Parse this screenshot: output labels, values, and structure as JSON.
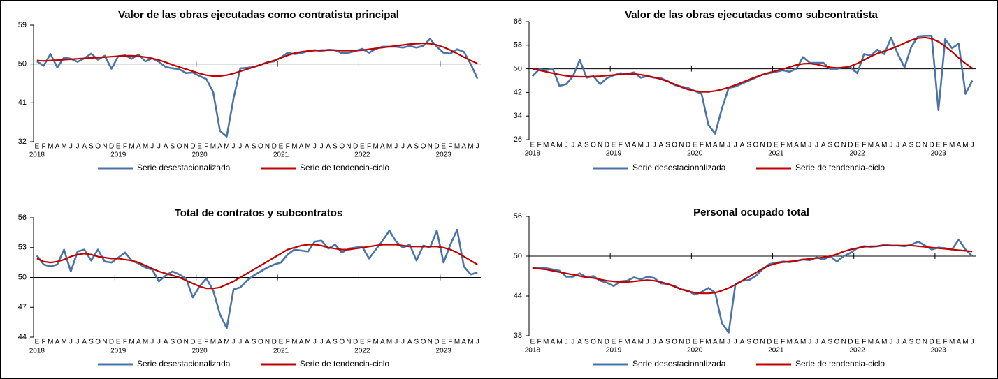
{
  "chart_data": [
    {
      "type": "line",
      "title": "Valor de las obras ejecutadas como contratista principal",
      "categories": [
        "E",
        "F",
        "M",
        "A",
        "M",
        "J",
        "J",
        "A",
        "S",
        "O",
        "N",
        "D",
        "E",
        "F",
        "M",
        "A",
        "M",
        "J",
        "J",
        "A",
        "S",
        "O",
        "N",
        "D",
        "E",
        "F",
        "M",
        "A",
        "M",
        "J",
        "J",
        "A",
        "S",
        "O",
        "N",
        "D",
        "E",
        "F",
        "M",
        "A",
        "M",
        "J",
        "J",
        "A",
        "S",
        "O",
        "N",
        "D",
        "E",
        "F",
        "M",
        "A",
        "M",
        "J",
        "J",
        "A",
        "S",
        "O",
        "N",
        "D",
        "E",
        "F",
        "M",
        "A",
        "M",
        "J"
      ],
      "years": [
        "2018",
        "2019",
        "2020",
        "2021",
        "2022",
        "2023"
      ],
      "ylim": [
        32,
        59
      ],
      "yticks": [
        32,
        41,
        50,
        59
      ],
      "xaxis_crosses": 50,
      "series": [
        {
          "name": "Serie desestacionalizada",
          "color": "#4a74a8",
          "values": [
            50.6,
            49.6,
            52.3,
            49.2,
            51.5,
            51.2,
            50.5,
            51.3,
            52.4,
            51.0,
            51.9,
            48.9,
            51.8,
            52.0,
            51.2,
            52.2,
            50.6,
            51.3,
            50.5,
            49.3,
            49.0,
            48.8,
            47.9,
            48.0,
            47.2,
            46.5,
            43.5,
            34.5,
            33.2,
            42.0,
            49.0,
            49.1,
            49.3,
            49.8,
            50.4,
            50.6,
            51.5,
            52.6,
            52.3,
            52.5,
            53.0,
            53.2,
            53.0,
            53.3,
            53.2,
            52.5,
            52.6,
            53.0,
            53.5,
            52.6,
            53.5,
            54.0,
            54.0,
            54.0,
            53.8,
            54.2,
            53.8,
            54.2,
            55.8,
            54.0,
            52.6,
            52.4,
            53.4,
            52.8,
            50.0,
            46.6
          ]
        },
        {
          "name": "Serie de tendencia-ciclo",
          "color": "#c00000",
          "values": [
            50.8,
            50.7,
            50.8,
            50.9,
            51.0,
            51.1,
            51.2,
            51.3,
            51.4,
            51.5,
            51.6,
            51.7,
            51.8,
            51.9,
            51.9,
            51.8,
            51.6,
            51.3,
            50.9,
            50.4,
            49.8,
            49.3,
            48.8,
            48.3,
            47.8,
            47.4,
            47.2,
            47.2,
            47.4,
            47.8,
            48.3,
            48.8,
            49.3,
            49.8,
            50.3,
            50.8,
            51.4,
            52.0,
            52.5,
            52.8,
            53.0,
            53.1,
            53.2,
            53.2,
            53.2,
            53.1,
            53.1,
            53.1,
            53.2,
            53.4,
            53.6,
            53.8,
            54.0,
            54.2,
            54.4,
            54.6,
            54.7,
            54.8,
            54.7,
            54.4,
            53.9,
            53.2,
            52.4,
            51.6,
            50.8,
            50.1
          ]
        }
      ]
    },
    {
      "type": "line",
      "title": "Valor de las obras ejecutadas como subcontratista",
      "categories": [
        "E",
        "F",
        "M",
        "A",
        "M",
        "J",
        "J",
        "A",
        "S",
        "O",
        "N",
        "D",
        "E",
        "F",
        "M",
        "A",
        "M",
        "J",
        "J",
        "A",
        "S",
        "O",
        "N",
        "D",
        "E",
        "F",
        "M",
        "A",
        "M",
        "J",
        "J",
        "A",
        "S",
        "O",
        "N",
        "D",
        "E",
        "F",
        "M",
        "A",
        "M",
        "J",
        "J",
        "A",
        "S",
        "O",
        "N",
        "D",
        "E",
        "F",
        "M",
        "A",
        "M",
        "J",
        "J",
        "A",
        "S",
        "O",
        "N",
        "D",
        "E",
        "F",
        "M",
        "A",
        "M",
        "J"
      ],
      "years": [
        "2018",
        "2019",
        "2020",
        "2021",
        "2022",
        "2023"
      ],
      "ylim": [
        26,
        66
      ],
      "yticks": [
        26,
        34,
        42,
        50,
        58,
        66
      ],
      "xaxis_crosses": 50,
      "series": [
        {
          "name": "Serie desestacionalizada",
          "color": "#4a74a8",
          "values": [
            47.5,
            49.8,
            49.5,
            50.0,
            44.2,
            44.8,
            47.5,
            53.0,
            47.0,
            47.5,
            44.8,
            46.8,
            47.8,
            48.5,
            48.2,
            48.8,
            47.0,
            47.5,
            47.0,
            46.8,
            45.8,
            44.5,
            44.0,
            43.5,
            42.5,
            41.5,
            31.0,
            28.0,
            36.5,
            43.5,
            44.0,
            45.0,
            46.0,
            47.0,
            48.0,
            48.5,
            49.0,
            49.5,
            49.0,
            50.0,
            54.0,
            52.0,
            52.0,
            52.0,
            50.0,
            50.0,
            50.5,
            50.5,
            48.5,
            55.0,
            54.5,
            56.5,
            55.0,
            60.5,
            55.0,
            50.5,
            57.5,
            61.0,
            61.2,
            61.2,
            36.0,
            60.0,
            57.0,
            58.5,
            41.5,
            46.0
          ]
        },
        {
          "name": "Serie de tendencia-ciclo",
          "color": "#c00000",
          "values": [
            50.0,
            49.5,
            49.0,
            48.5,
            48.0,
            47.6,
            47.4,
            47.3,
            47.3,
            47.4,
            47.5,
            47.7,
            47.9,
            48.1,
            48.2,
            48.2,
            48.0,
            47.6,
            47.1,
            46.5,
            45.7,
            44.8,
            43.8,
            43.0,
            42.5,
            42.2,
            42.2,
            42.5,
            43.0,
            43.7,
            44.5,
            45.4,
            46.3,
            47.2,
            48.0,
            48.7,
            49.3,
            49.9,
            50.6,
            51.3,
            51.7,
            51.8,
            51.5,
            51.0,
            50.5,
            50.3,
            50.4,
            50.9,
            51.8,
            53.0,
            54.2,
            55.2,
            56.0,
            56.8,
            57.7,
            58.7,
            59.7,
            60.4,
            60.6,
            60.2,
            59.2,
            57.6,
            55.8,
            53.7,
            51.8,
            50.2
          ]
        }
      ]
    },
    {
      "type": "line",
      "title": "Total de contratos y subcontratos",
      "categories": [
        "E",
        "F",
        "M",
        "A",
        "M",
        "J",
        "J",
        "A",
        "S",
        "O",
        "N",
        "D",
        "E",
        "F",
        "M",
        "A",
        "M",
        "J",
        "J",
        "A",
        "S",
        "O",
        "N",
        "D",
        "E",
        "F",
        "M",
        "A",
        "M",
        "J",
        "J",
        "A",
        "S",
        "O",
        "N",
        "D",
        "E",
        "F",
        "M",
        "A",
        "M",
        "J",
        "J",
        "A",
        "S",
        "O",
        "N",
        "D",
        "E",
        "F",
        "M",
        "A",
        "M",
        "J",
        "J",
        "A",
        "S",
        "O",
        "N",
        "D",
        "E",
        "F",
        "M",
        "A",
        "M",
        "J"
      ],
      "years": [
        "2018",
        "2019",
        "2020",
        "2021",
        "2022",
        "2023"
      ],
      "ylim": [
        44,
        56
      ],
      "yticks": [
        44,
        47,
        50,
        53,
        56
      ],
      "xaxis_crosses": 50,
      "series": [
        {
          "name": "Serie desestacionalizada",
          "color": "#4a74a8",
          "values": [
            52.2,
            51.3,
            51.1,
            51.3,
            52.8,
            50.6,
            52.6,
            52.8,
            51.7,
            52.8,
            51.6,
            51.5,
            52.0,
            52.5,
            51.7,
            51.4,
            51.0,
            50.8,
            49.6,
            50.2,
            50.6,
            50.3,
            49.9,
            48.0,
            49.1,
            49.9,
            48.7,
            46.3,
            44.9,
            48.8,
            49.0,
            49.7,
            50.2,
            50.6,
            51.0,
            51.3,
            51.5,
            52.3,
            52.8,
            52.7,
            52.6,
            53.6,
            53.7,
            52.9,
            53.3,
            52.5,
            52.9,
            53.0,
            53.1,
            51.9,
            52.8,
            53.7,
            54.7,
            53.6,
            53.0,
            53.3,
            51.7,
            53.2,
            53.0,
            54.7,
            51.5,
            53.3,
            54.8,
            51.1,
            50.3,
            50.5
          ]
        },
        {
          "name": "Serie de tendencia-ciclo",
          "color": "#c00000",
          "values": [
            51.9,
            51.6,
            51.5,
            51.6,
            51.8,
            52.1,
            52.3,
            52.4,
            52.3,
            52.1,
            52.0,
            51.9,
            51.9,
            51.8,
            51.7,
            51.5,
            51.2,
            50.9,
            50.6,
            50.4,
            50.2,
            50.0,
            49.7,
            49.4,
            49.1,
            48.9,
            48.9,
            49.0,
            49.3,
            49.6,
            50.0,
            50.4,
            50.8,
            51.2,
            51.6,
            52.0,
            52.4,
            52.8,
            53.0,
            53.2,
            53.3,
            53.3,
            53.2,
            53.0,
            52.9,
            52.8,
            52.8,
            52.9,
            53.0,
            53.1,
            53.2,
            53.3,
            53.3,
            53.3,
            53.2,
            53.1,
            53.1,
            53.1,
            53.1,
            53.1,
            53.0,
            52.8,
            52.5,
            52.1,
            51.7,
            51.3
          ]
        }
      ]
    },
    {
      "type": "line",
      "title": "Personal ocupado total",
      "categories": [
        "E",
        "F",
        "M",
        "A",
        "M",
        "J",
        "J",
        "A",
        "S",
        "O",
        "N",
        "D",
        "E",
        "F",
        "M",
        "A",
        "M",
        "J",
        "J",
        "A",
        "S",
        "O",
        "N",
        "D",
        "E",
        "F",
        "M",
        "A",
        "M",
        "J",
        "J",
        "A",
        "S",
        "O",
        "N",
        "D",
        "E",
        "F",
        "M",
        "A",
        "M",
        "J",
        "J",
        "A",
        "S",
        "O",
        "N",
        "D",
        "E",
        "F",
        "M",
        "A",
        "M",
        "J",
        "J",
        "A",
        "S",
        "O",
        "N",
        "D",
        "E",
        "F",
        "M",
        "A",
        "M",
        "J"
      ],
      "years": [
        "2018",
        "2019",
        "2020",
        "2021",
        "2022",
        "2023"
      ],
      "ylim": [
        38,
        56
      ],
      "yticks": [
        38,
        44,
        50,
        56
      ],
      "xaxis_crosses": 50,
      "series": [
        {
          "name": "Serie desestacionalizada",
          "color": "#4a74a8",
          "values": [
            48.2,
            48.2,
            48.2,
            48.0,
            47.8,
            46.9,
            46.9,
            47.4,
            46.8,
            47.0,
            46.3,
            46.0,
            45.5,
            46.2,
            46.3,
            46.8,
            46.5,
            46.9,
            46.7,
            45.9,
            45.8,
            45.5,
            45.0,
            44.8,
            44.2,
            44.6,
            45.2,
            44.5,
            39.9,
            38.5,
            45.8,
            46.3,
            46.4,
            47.0,
            48.0,
            48.8,
            49.0,
            49.2,
            49.1,
            49.3,
            49.5,
            49.4,
            49.8,
            49.5,
            50.0,
            49.2,
            50.0,
            50.5,
            51.2,
            51.5,
            51.4,
            51.5,
            51.7,
            51.6,
            51.6,
            51.5,
            51.7,
            52.2,
            51.6,
            51.0,
            51.3,
            51.2,
            51.0,
            52.5,
            51.0,
            50.0
          ]
        },
        {
          "name": "Serie de tendencia-ciclo",
          "color": "#c00000",
          "values": [
            48.2,
            48.1,
            48.0,
            47.8,
            47.6,
            47.4,
            47.2,
            47.0,
            46.8,
            46.7,
            46.5,
            46.3,
            46.2,
            46.1,
            46.1,
            46.2,
            46.3,
            46.4,
            46.3,
            46.1,
            45.8,
            45.4,
            45.0,
            44.7,
            44.5,
            44.4,
            44.4,
            44.5,
            44.8,
            45.2,
            45.7,
            46.3,
            46.9,
            47.5,
            48.1,
            48.6,
            48.9,
            49.1,
            49.2,
            49.3,
            49.5,
            49.6,
            49.7,
            49.8,
            50.0,
            50.3,
            50.7,
            51.0,
            51.2,
            51.4,
            51.5,
            51.5,
            51.6,
            51.6,
            51.6,
            51.6,
            51.6,
            51.5,
            51.4,
            51.3,
            51.2,
            51.1,
            51.0,
            50.9,
            50.8,
            50.7
          ]
        }
      ]
    }
  ]
}
